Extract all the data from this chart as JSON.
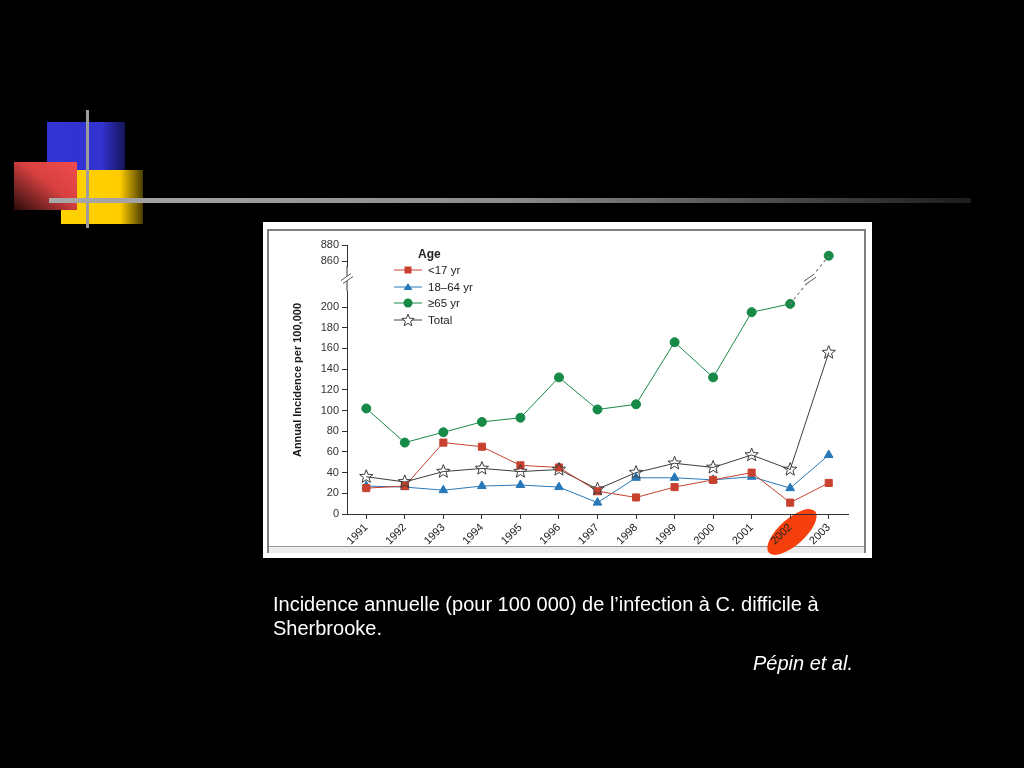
{
  "chart_data": [
    {
      "type": "line",
      "tick_labels": "y",
      "categories": [
        "1991",
        "1992",
        "1993",
        "1994",
        "1995",
        "1996",
        "1997",
        "1998",
        "1999",
        "2000",
        "2001",
        "2002",
        "2003"
      ],
      "series": [
        {
          "color": "#178a48",
          "marker": "circle",
          "values": [
            null,
            null,
            null,
            null,
            null,
            null,
            null,
            null,
            null,
            null,
            null,
            null,
            867
          ]
        }
      ],
      "ylim": [
        854,
        880
      ],
      "yticks": [
        860,
        880
      ]
    },
    {
      "type": "line",
      "ylabel": "Annual Incidence per 100,000",
      "legend_title": "Age",
      "legend": "top left",
      "categories": [
        "1991",
        "1992",
        "1993",
        "1994",
        "1995",
        "1996",
        "1997",
        "1998",
        "1999",
        "2000",
        "2001",
        "2002",
        "2003"
      ],
      "series": [
        {
          "name": "<17 yr",
          "color": "#c8412f",
          "marker": "square",
          "values": [
            25,
            27,
            69,
            65,
            47,
            45,
            22,
            16,
            26,
            33,
            40,
            11,
            30
          ]
        },
        {
          "name": "18–64 yr",
          "color": "#2878b8",
          "marker": "triangle",
          "values": [
            27,
            26,
            23,
            27,
            28,
            26,
            11,
            35,
            35,
            33,
            36,
            25,
            57
          ]
        },
        {
          "name": "≥65 yr",
          "color": "#178a48",
          "marker": "circle",
          "values": [
            102,
            69,
            79,
            89,
            93,
            132,
            101,
            106,
            166,
            132,
            195,
            203,
            null
          ]
        },
        {
          "name": "Total",
          "color": "#3c3c3c",
          "marker": "star",
          "values": [
            36,
            31,
            41,
            44,
            41,
            43,
            24,
            40,
            49,
            45,
            57,
            43,
            156
          ]
        }
      ],
      "ylim": [
        0,
        215
      ],
      "yticks": [
        0,
        20,
        40,
        60,
        80,
        100,
        120,
        140,
        160,
        180,
        200
      ],
      "annotations": [
        "Incidence annuelle (pour 100 000) de l’infection à C. difficile à Sherbrooke.",
        "Pépin et al."
      ]
    }
  ]
}
